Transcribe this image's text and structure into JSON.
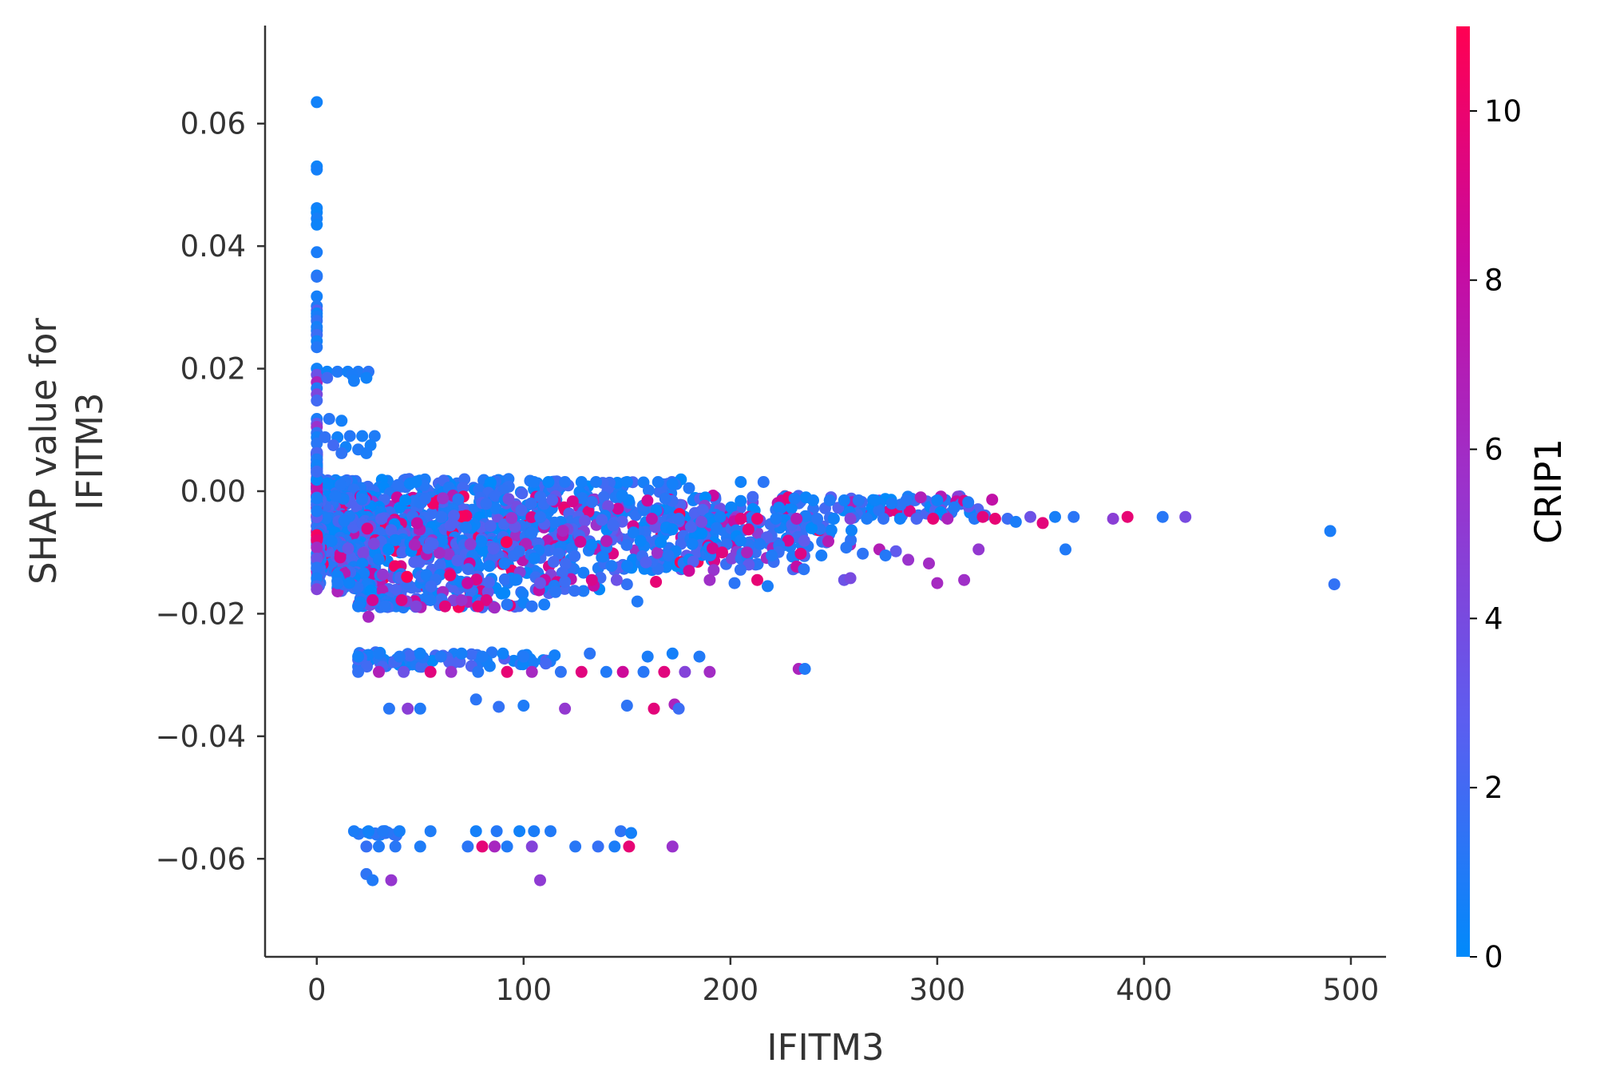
{
  "chart_data": {
    "type": "scatter",
    "title": "",
    "xlabel": "IFITM3",
    "ylabel_lines": [
      "SHAP value for",
      "IFITM3"
    ],
    "xlim": [
      -25,
      517
    ],
    "ylim": [
      -0.076,
      0.076
    ],
    "x_ticks": [
      0,
      100,
      200,
      300,
      400,
      500
    ],
    "x_tick_labels": [
      "0",
      "100",
      "200",
      "300",
      "400",
      "500"
    ],
    "y_ticks": [
      0.06,
      0.04,
      0.02,
      0.0,
      -0.02,
      -0.04,
      -0.06
    ],
    "y_tick_labels": [
      "0.06",
      "0.04",
      "0.02",
      "0.00",
      "−0.02",
      "−0.04",
      "−0.06"
    ],
    "colorbar": {
      "label": "CRIP1",
      "range": [
        0,
        11
      ],
      "ticks": [
        0,
        2,
        4,
        6,
        8,
        10
      ],
      "tick_labels": [
        "0",
        "2",
        "4",
        "6",
        "8",
        "10"
      ],
      "colors": [
        "#008afb",
        "#5b5ef0",
        "#9a33cc",
        "#c80aa0",
        "#ff0052"
      ]
    },
    "grid": false,
    "points": [
      [
        0,
        0.0635,
        0.5
      ],
      [
        0,
        0.053,
        0.4
      ],
      [
        0,
        0.0525,
        0.6
      ],
      [
        0,
        0.0462,
        0.5
      ],
      [
        0,
        0.0455,
        0.3
      ],
      [
        0,
        0.0445,
        0.7
      ],
      [
        0,
        0.0435,
        0.4
      ],
      [
        0,
        0.039,
        0.8
      ],
      [
        0,
        0.0352,
        0.5
      ],
      [
        0,
        0.035,
        1.2
      ],
      [
        0,
        0.0318,
        0.6
      ],
      [
        0,
        0.0302,
        1.0
      ],
      [
        0,
        0.0295,
        2.5
      ],
      [
        0,
        0.029,
        0.4
      ],
      [
        0,
        0.0285,
        0.8
      ],
      [
        0,
        0.0278,
        1.5
      ],
      [
        0,
        0.0268,
        0.6
      ],
      [
        0,
        0.0262,
        0.9
      ],
      [
        0,
        0.0255,
        1.8
      ],
      [
        0,
        0.0245,
        0.5
      ],
      [
        0,
        0.0235,
        1.1
      ],
      [
        0,
        0.02,
        0.5
      ],
      [
        0,
        0.019,
        3.5
      ],
      [
        0,
        0.0178,
        6.5
      ],
      [
        0,
        0.0168,
        1.0
      ],
      [
        0,
        0.0158,
        4.2
      ],
      [
        0,
        0.0148,
        2.0
      ],
      [
        0,
        0.0118,
        0.8
      ],
      [
        0,
        0.011,
        3.0
      ],
      [
        0,
        0.0105,
        5.5
      ],
      [
        0,
        0.0095,
        1.5
      ],
      [
        0,
        0.0088,
        0.6
      ],
      [
        0,
        0.0078,
        1.2
      ],
      [
        0,
        0.0062,
        2.2
      ],
      [
        0,
        0.0052,
        0.9
      ],
      [
        0,
        0.0042,
        0.5
      ],
      [
        0,
        0.0032,
        1.8
      ],
      [
        0,
        -0.008,
        9.8
      ],
      [
        0,
        -0.0092,
        6.0
      ],
      [
        0,
        -0.011,
        3.5
      ],
      [
        0,
        -0.0125,
        1.2
      ],
      [
        0,
        -0.0142,
        0.8
      ],
      [
        0,
        -0.0155,
        2.0
      ],
      [
        0,
        -0.016,
        4.5
      ],
      [
        5,
        0.0195,
        0.4
      ],
      [
        10,
        0.0195,
        1.0
      ],
      [
        15,
        0.0195,
        0.6
      ],
      [
        20,
        0.0195,
        0.9
      ],
      [
        25,
        0.0195,
        1.3
      ],
      [
        5,
        0.0185,
        2.0
      ],
      [
        17,
        0.019,
        0.8
      ],
      [
        24,
        0.0185,
        0.5
      ],
      [
        18,
        0.018,
        0.7
      ],
      [
        6,
        0.0118,
        1.2
      ],
      [
        12,
        0.0115,
        0.6
      ],
      [
        4,
        0.0088,
        1.5
      ],
      [
        10,
        0.0088,
        0.5
      ],
      [
        16,
        0.009,
        1.1
      ],
      [
        22,
        0.009,
        0.7
      ],
      [
        28,
        0.009,
        0.9
      ],
      [
        8,
        0.0075,
        2.0
      ],
      [
        14,
        0.0072,
        0.5
      ],
      [
        20,
        0.0068,
        1.0
      ],
      [
        26,
        0.0075,
        0.6
      ],
      [
        12,
        0.0062,
        1.4
      ],
      [
        24,
        0.0062,
        0.8
      ],
      [
        48,
        0.0015,
        0.4
      ],
      [
        105,
        0.0015,
        0.8
      ],
      [
        112,
        0.0015,
        0.3
      ],
      [
        120,
        0.0015,
        1.1
      ],
      [
        128,
        0.0015,
        0.6
      ],
      [
        135,
        0.0015,
        0.9
      ],
      [
        150,
        0.0015,
        0.5
      ],
      [
        165,
        0.0015,
        0.8
      ],
      [
        172,
        0.0012,
        0.6
      ],
      [
        180,
        0.0005,
        1.0
      ],
      [
        205,
        0.0015,
        0.5
      ],
      [
        216,
        0.0015,
        1.3
      ],
      [
        228,
        -0.001,
        9.8
      ],
      [
        231,
        -0.0012,
        0.8
      ],
      [
        240,
        -0.0015,
        0.5
      ],
      [
        248,
        -0.0015,
        1.0
      ],
      [
        255,
        -0.0015,
        0.6
      ],
      [
        262,
        -0.0015,
        1.2
      ],
      [
        270,
        -0.0015,
        0.4
      ],
      [
        278,
        -0.002,
        0.8
      ],
      [
        285,
        -0.0015,
        1.2
      ],
      [
        292,
        -0.001,
        6.8
      ],
      [
        300,
        -0.0015,
        0.5
      ],
      [
        315,
        -0.0018,
        1.0
      ],
      [
        162,
        -0.0045,
        7.5
      ],
      [
        175,
        -0.0045,
        1.5
      ],
      [
        186,
        -0.005,
        3.8
      ],
      [
        195,
        -0.0042,
        0.6
      ],
      [
        205,
        -0.0045,
        9.5
      ],
      [
        213,
        -0.0045,
        9.8
      ],
      [
        222,
        -0.0045,
        0.8
      ],
      [
        232,
        -0.0045,
        7.0
      ],
      [
        242,
        -0.0045,
        1.2
      ],
      [
        250,
        -0.0045,
        0.5
      ],
      [
        258,
        -0.0045,
        4.5
      ],
      [
        266,
        -0.0045,
        0.9
      ],
      [
        274,
        -0.0045,
        1.5
      ],
      [
        282,
        -0.0045,
        0.6
      ],
      [
        290,
        -0.0045,
        2.2
      ],
      [
        298,
        -0.0045,
        9.8
      ],
      [
        305,
        -0.0045,
        6.5
      ],
      [
        318,
        -0.0045,
        1.1
      ],
      [
        322,
        -0.0042,
        9.5
      ],
      [
        328,
        -0.0045,
        9.8
      ],
      [
        334,
        -0.0045,
        1.8
      ],
      [
        338,
        -0.005,
        0.8
      ],
      [
        345,
        -0.0042,
        3.5
      ],
      [
        351,
        -0.0052,
        9.6
      ],
      [
        357,
        -0.0042,
        0.7
      ],
      [
        366,
        -0.0042,
        1.3
      ],
      [
        385,
        -0.0045,
        4.8
      ],
      [
        392,
        -0.0042,
        9.8
      ],
      [
        409,
        -0.0042,
        1.2
      ],
      [
        420,
        -0.0042,
        4.0
      ],
      [
        490,
        -0.0065,
        0.8
      ],
      [
        492,
        -0.0152,
        1.5
      ],
      [
        362,
        -0.0095,
        1.0
      ],
      [
        320,
        -0.0095,
        5.2
      ],
      [
        170,
        -0.0105,
        1.2
      ],
      [
        182,
        -0.0115,
        2.5
      ],
      [
        196,
        -0.01,
        9.5
      ],
      [
        208,
        -0.01,
        6.5
      ],
      [
        220,
        -0.0105,
        1.0
      ],
      [
        234,
        -0.0102,
        9.3
      ],
      [
        244,
        -0.0105,
        0.8
      ],
      [
        256,
        -0.0092,
        1.2
      ],
      [
        264,
        -0.0102,
        1.4
      ],
      [
        272,
        -0.0095,
        7.0
      ],
      [
        280,
        -0.0098,
        3.0
      ],
      [
        286,
        -0.0112,
        5.5
      ],
      [
        296,
        -0.0118,
        6.0
      ],
      [
        255,
        -0.0145,
        3.5
      ],
      [
        258,
        -0.0142,
        4.0
      ],
      [
        275,
        -0.0105,
        1.1
      ],
      [
        300,
        -0.015,
        6.2
      ],
      [
        313,
        -0.0145,
        5.8
      ],
      [
        190,
        -0.0145,
        5.8
      ],
      [
        202,
        -0.015,
        1.3
      ],
      [
        213,
        -0.0145,
        9.8
      ],
      [
        218,
        -0.0155,
        0.8
      ],
      [
        180,
        -0.013,
        8.5
      ],
      [
        164,
        -0.0148,
        9.8
      ],
      [
        155,
        -0.018,
        1.0
      ],
      [
        150,
        -0.0152,
        1.5
      ],
      [
        145,
        -0.0145,
        3.5
      ],
      [
        133,
        -0.0145,
        9.0
      ],
      [
        120,
        -0.0148,
        1.8
      ],
      [
        108,
        -0.015,
        3.2
      ],
      [
        96,
        -0.0145,
        0.6
      ],
      [
        82,
        -0.0178,
        9.2
      ],
      [
        78,
        -0.0188,
        9.8
      ],
      [
        70,
        -0.0178,
        5.5
      ],
      [
        62,
        -0.0188,
        9.6
      ],
      [
        55,
        -0.0178,
        1.0
      ],
      [
        48,
        -0.0188,
        4.4
      ],
      [
        41,
        -0.0178,
        9.3
      ],
      [
        33,
        -0.0188,
        1.2
      ],
      [
        27,
        -0.0178,
        8.8
      ],
      [
        25,
        -0.0205,
        6.3
      ],
      [
        20,
        -0.0188,
        0.8
      ],
      [
        92,
        -0.0185,
        1.2
      ],
      [
        100,
        -0.0182,
        0.5
      ],
      [
        104,
        -0.0188,
        1.3
      ],
      [
        110,
        -0.0185,
        0.8
      ],
      [
        86,
        -0.019,
        6.0
      ],
      [
        20,
        -0.027,
        0.6
      ],
      [
        30,
        -0.0265,
        0.8
      ],
      [
        40,
        -0.027,
        1.0
      ],
      [
        50,
        -0.0265,
        0.6
      ],
      [
        60,
        -0.027,
        1.1
      ],
      [
        70,
        -0.0265,
        0.7
      ],
      [
        80,
        -0.027,
        0.9
      ],
      [
        90,
        -0.0265,
        0.5
      ],
      [
        100,
        -0.027,
        1.0
      ],
      [
        115,
        -0.0268,
        0.6
      ],
      [
        132,
        -0.0265,
        1.3
      ],
      [
        160,
        -0.027,
        0.8
      ],
      [
        172,
        -0.0265,
        0.6
      ],
      [
        185,
        -0.027,
        1.0
      ],
      [
        20,
        -0.0295,
        1.5
      ],
      [
        30,
        -0.0295,
        6.8
      ],
      [
        42,
        -0.0295,
        3.5
      ],
      [
        55,
        -0.0295,
        9.5
      ],
      [
        65,
        -0.0295,
        5.5
      ],
      [
        78,
        -0.0295,
        1.2
      ],
      [
        92,
        -0.0295,
        9.8
      ],
      [
        104,
        -0.0295,
        6.2
      ],
      [
        118,
        -0.0295,
        1.4
      ],
      [
        128,
        -0.0295,
        9.5
      ],
      [
        140,
        -0.0295,
        1.0
      ],
      [
        148,
        -0.0295,
        8.5
      ],
      [
        158,
        -0.0295,
        1.2
      ],
      [
        168,
        -0.0295,
        9.5
      ],
      [
        178,
        -0.0295,
        4.5
      ],
      [
        190,
        -0.0295,
        6.0
      ],
      [
        233,
        -0.029,
        6.5
      ],
      [
        236,
        -0.029,
        1.0
      ],
      [
        35,
        -0.0355,
        1.2
      ],
      [
        44,
        -0.0355,
        4.8
      ],
      [
        50,
        -0.0355,
        1.0
      ],
      [
        77,
        -0.034,
        1.3
      ],
      [
        88,
        -0.0352,
        1.5
      ],
      [
        100,
        -0.035,
        0.9
      ],
      [
        120,
        -0.0355,
        5.2
      ],
      [
        150,
        -0.035,
        1.4
      ],
      [
        163,
        -0.0355,
        9.6
      ],
      [
        173,
        -0.0348,
        6.5
      ],
      [
        175,
        -0.0355,
        1.8
      ],
      [
        18,
        -0.0555,
        0.8
      ],
      [
        25,
        -0.0555,
        0.5
      ],
      [
        32,
        -0.0555,
        1.0
      ],
      [
        40,
        -0.0555,
        0.7
      ],
      [
        55,
        -0.0555,
        0.9
      ],
      [
        77,
        -0.0555,
        0.6
      ],
      [
        87,
        -0.0555,
        1.1
      ],
      [
        98,
        -0.0555,
        0.5
      ],
      [
        105,
        -0.0555,
        0.8
      ],
      [
        113,
        -0.0555,
        1.0
      ],
      [
        147,
        -0.0555,
        1.4
      ],
      [
        152,
        -0.0558,
        0.6
      ],
      [
        24,
        -0.058,
        1.6
      ],
      [
        30,
        -0.058,
        1.0
      ],
      [
        38,
        -0.058,
        1.2
      ],
      [
        50,
        -0.058,
        0.9
      ],
      [
        73,
        -0.058,
        1.3
      ],
      [
        80,
        -0.058,
        9.7
      ],
      [
        86,
        -0.058,
        6.3
      ],
      [
        92,
        -0.058,
        1.0
      ],
      [
        104,
        -0.058,
        4.5
      ],
      [
        125,
        -0.058,
        1.2
      ],
      [
        136,
        -0.058,
        1.6
      ],
      [
        144,
        -0.058,
        0.8
      ],
      [
        151,
        -0.058,
        9.8
      ],
      [
        172,
        -0.058,
        5.5
      ],
      [
        24,
        -0.0625,
        1.4
      ],
      [
        27,
        -0.0635,
        1.0
      ],
      [
        36,
        -0.0635,
        5.3
      ],
      [
        108,
        -0.0635,
        5.0
      ]
    ],
    "bands": [
      {
        "x_min": 0,
        "x_max": 180,
        "y_center": 0.0008,
        "y_spread": 0.0012,
        "n": 190,
        "c_min": 0,
        "c_max": 2.2
      },
      {
        "x_min": 0,
        "x_max": 330,
        "y_center": -0.0025,
        "y_spread": 0.0018,
        "n": 420,
        "c_min": 0,
        "c_max": 11
      },
      {
        "x_min": 0,
        "x_max": 260,
        "y_center": -0.0065,
        "y_spread": 0.0025,
        "n": 520,
        "c_min": 0,
        "c_max": 11
      },
      {
        "x_min": 0,
        "x_max": 240,
        "y_center": -0.0105,
        "y_spread": 0.0025,
        "n": 380,
        "c_min": 0,
        "c_max": 11
      },
      {
        "x_min": 10,
        "x_max": 140,
        "y_center": -0.015,
        "y_spread": 0.0018,
        "n": 180,
        "c_min": 0,
        "c_max": 11
      },
      {
        "x_min": 20,
        "x_max": 100,
        "y_center": -0.0182,
        "y_spread": 0.0008,
        "n": 60,
        "c_min": 0,
        "c_max": 11
      },
      {
        "x_min": 20,
        "x_max": 115,
        "y_center": -0.0275,
        "y_spread": 0.0012,
        "n": 90,
        "c_min": 0,
        "c_max": 3
      },
      {
        "x_min": 20,
        "x_max": 50,
        "y_center": -0.0558,
        "y_spread": 0.0004,
        "n": 14,
        "c_min": 0,
        "c_max": 2
      },
      {
        "x_min": 0,
        "x_max": 0,
        "y_center": 0.001,
        "y_spread": 0.0055,
        "n": 70,
        "c_min": 0,
        "c_max": 9
      },
      {
        "x_min": 0,
        "x_max": 2,
        "y_center": -0.011,
        "y_spread": 0.0045,
        "n": 50,
        "c_min": 0,
        "c_max": 11
      }
    ]
  }
}
